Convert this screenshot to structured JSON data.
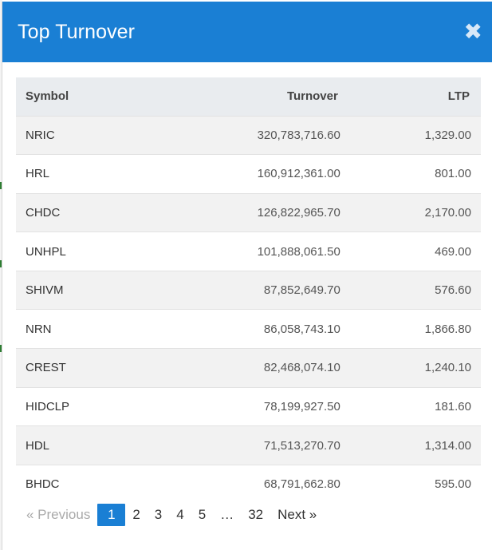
{
  "modal": {
    "title": "Top Turnover",
    "close_glyph": "✖"
  },
  "table": {
    "headers": {
      "symbol": "Symbol",
      "turnover": "Turnover",
      "ltp": "LTP"
    },
    "rows": [
      {
        "symbol": "NRIC",
        "turnover": "320,783,716.60",
        "ltp": "1,329.00"
      },
      {
        "symbol": "HRL",
        "turnover": "160,912,361.00",
        "ltp": "801.00"
      },
      {
        "symbol": "CHDC",
        "turnover": "126,822,965.70",
        "ltp": "2,170.00"
      },
      {
        "symbol": "UNHPL",
        "turnover": "101,888,061.50",
        "ltp": "469.00"
      },
      {
        "symbol": "SHIVM",
        "turnover": "87,852,649.70",
        "ltp": "576.60"
      },
      {
        "symbol": "NRN",
        "turnover": "86,058,743.10",
        "ltp": "1,866.80"
      },
      {
        "symbol": "CREST",
        "turnover": "82,468,074.10",
        "ltp": "1,240.10"
      },
      {
        "symbol": "HIDCLP",
        "turnover": "78,199,927.50",
        "ltp": "181.60"
      },
      {
        "symbol": "HDL",
        "turnover": "71,513,270.70",
        "ltp": "1,314.00"
      },
      {
        "symbol": "BHDC",
        "turnover": "68,791,662.80",
        "ltp": "595.00"
      }
    ]
  },
  "pagination": {
    "prev_label": "« Previous",
    "pages": [
      "1",
      "2",
      "3",
      "4",
      "5"
    ],
    "ellipsis": "…",
    "last_page": "32",
    "next_label": "Next »",
    "current": "1"
  },
  "colors": {
    "header": "#1a7fd4",
    "active_page": "#1a7fd4",
    "row_alt": "#f2f2f2"
  }
}
